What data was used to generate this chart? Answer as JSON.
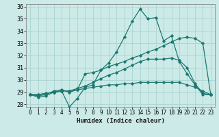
{
  "xlabel": "Humidex (Indice chaleur)",
  "ylabel": "",
  "bg_color": "#cceae7",
  "grid_color": "#aad4d0",
  "line_color": "#1a7870",
  "xlim": [
    -0.5,
    23.5
  ],
  "ylim": [
    27.8,
    36.2
  ],
  "yticks": [
    28,
    29,
    30,
    31,
    32,
    33,
    34,
    35,
    36
  ],
  "xticks": [
    0,
    1,
    2,
    3,
    4,
    5,
    6,
    7,
    8,
    9,
    10,
    11,
    12,
    13,
    14,
    15,
    16,
    17,
    18,
    19,
    20,
    21,
    22,
    23
  ],
  "series": [
    [
      28.8,
      28.6,
      28.7,
      29.0,
      29.1,
      27.8,
      28.5,
      29.4,
      29.6,
      30.8,
      31.4,
      32.3,
      33.5,
      34.8,
      35.8,
      35.0,
      35.1,
      33.2,
      33.6,
      31.5,
      30.5,
      29.6,
      28.8,
      28.8
    ],
    [
      28.8,
      28.7,
      28.8,
      29.1,
      29.2,
      29.0,
      29.2,
      30.5,
      30.6,
      30.8,
      31.1,
      31.3,
      31.5,
      31.8,
      32.0,
      32.3,
      32.5,
      32.8,
      33.1,
      33.4,
      33.5,
      33.4,
      33.0,
      28.8
    ],
    [
      28.8,
      28.8,
      28.9,
      29.0,
      29.1,
      29.1,
      29.2,
      29.3,
      29.4,
      29.5,
      29.6,
      29.6,
      29.7,
      29.7,
      29.8,
      29.8,
      29.8,
      29.8,
      29.8,
      29.8,
      29.6,
      29.4,
      29.1,
      28.8
    ],
    [
      28.8,
      28.8,
      28.9,
      29.0,
      29.1,
      29.1,
      29.3,
      29.5,
      29.8,
      30.1,
      30.4,
      30.6,
      30.9,
      31.2,
      31.5,
      31.7,
      31.7,
      31.7,
      31.8,
      31.6,
      31.0,
      29.7,
      28.9,
      28.8
    ]
  ]
}
